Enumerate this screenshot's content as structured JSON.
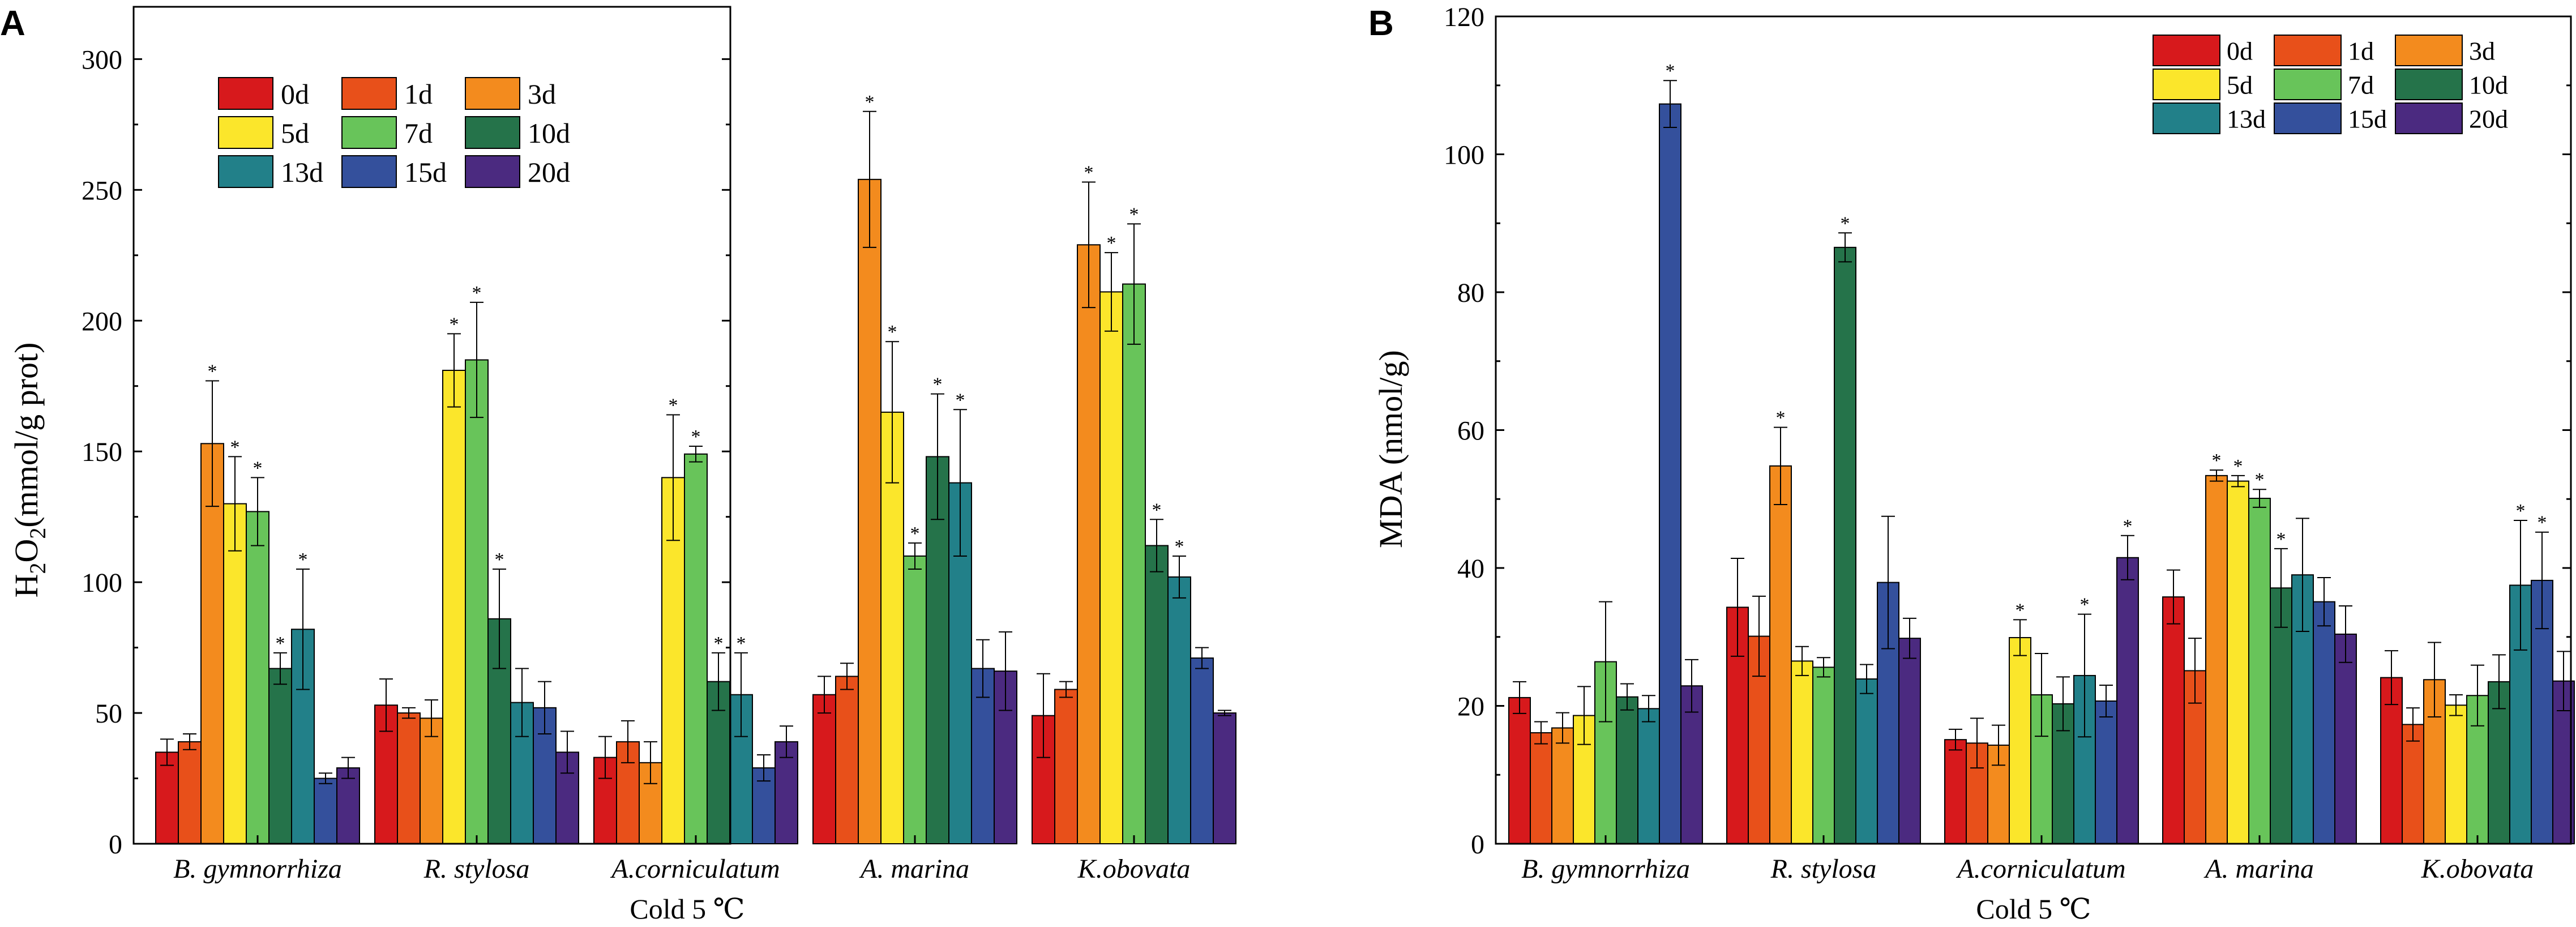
{
  "colors": {
    "0d": "#d7191c",
    "1d": "#e8501a",
    "3d": "#f38b1e",
    "5d": "#fbe62b",
    "7d": "#68c45a",
    "10d": "#25734a",
    "13d": "#228089",
    "15d": "#34509c",
    "20d": "#4b2a80"
  },
  "legend_labels": [
    "0d",
    "1d",
    "3d",
    "5d",
    "7d",
    "10d",
    "13d",
    "15d",
    "20d"
  ],
  "chart_data": [
    {
      "panel": "A",
      "type": "bar",
      "xlabel": "Cold  5 ℃",
      "ylabel": "H2O2(mmol/g prot)",
      "ylabel_parts": [
        "H",
        "2",
        "O",
        "2",
        "(mmol/g prot)"
      ],
      "ylim": [
        0,
        320
      ],
      "yticks": [
        0,
        50,
        100,
        150,
        200,
        250,
        300
      ],
      "legend_position": "top-left",
      "categories": [
        "B. gymnorrhiza",
        "R. stylosa",
        "A.corniculatum",
        "A. marina",
        "K.obovata"
      ],
      "series": [
        {
          "name": "0d",
          "values": [
            35,
            53,
            33,
            57,
            49
          ],
          "errors": [
            5,
            10,
            8,
            7,
            16
          ],
          "significant": [
            false,
            false,
            false,
            false,
            false
          ]
        },
        {
          "name": "1d",
          "values": [
            39,
            50,
            39,
            64,
            59
          ],
          "errors": [
            3,
            2,
            8,
            5,
            3
          ],
          "significant": [
            false,
            false,
            false,
            false,
            false
          ]
        },
        {
          "name": "3d",
          "values": [
            153,
            48,
            31,
            254,
            229
          ],
          "errors": [
            24,
            7,
            8,
            26,
            24
          ],
          "significant": [
            true,
            false,
            false,
            true,
            true
          ]
        },
        {
          "name": "5d",
          "values": [
            130,
            181,
            140,
            165,
            211
          ],
          "errors": [
            18,
            14,
            24,
            27,
            15
          ],
          "significant": [
            true,
            true,
            true,
            true,
            true
          ]
        },
        {
          "name": "7d",
          "values": [
            127,
            185,
            149,
            110,
            214
          ],
          "errors": [
            13,
            22,
            3,
            5,
            23
          ],
          "significant": [
            true,
            true,
            true,
            true,
            true
          ]
        },
        {
          "name": "10d",
          "values": [
            67,
            86,
            62,
            148,
            114
          ],
          "errors": [
            6,
            19,
            11,
            24,
            10
          ],
          "significant": [
            true,
            true,
            true,
            true,
            true
          ]
        },
        {
          "name": "13d",
          "values": [
            82,
            54,
            57,
            138,
            102
          ],
          "errors": [
            23,
            13,
            16,
            28,
            8
          ],
          "significant": [
            true,
            false,
            true,
            true,
            true
          ]
        },
        {
          "name": "15d",
          "values": [
            25,
            52,
            29,
            67,
            71
          ],
          "errors": [
            2,
            10,
            5,
            11,
            4
          ],
          "significant": [
            false,
            false,
            false,
            false,
            false
          ]
        },
        {
          "name": "20d",
          "values": [
            29,
            35,
            39,
            66,
            50
          ],
          "errors": [
            4,
            8,
            6,
            15,
            1
          ],
          "significant": [
            false,
            false,
            false,
            false,
            false
          ]
        }
      ]
    },
    {
      "panel": "B",
      "type": "bar",
      "xlabel": "Cold  5 ℃",
      "ylabel": "MDA (nmol/g)",
      "ylim": [
        0,
        120
      ],
      "yticks": [
        0,
        20,
        40,
        60,
        80,
        100,
        120
      ],
      "legend_position": "top-right",
      "categories": [
        "B. gymnorrhiza",
        "R. stylosa",
        "A.corniculatum",
        "A. marina",
        "K.obovata"
      ],
      "series": [
        {
          "name": "0d",
          "values": [
            21.2,
            34.3,
            15.1,
            35.8,
            24.1
          ],
          "errors": [
            2.3,
            7.1,
            1.5,
            3.9,
            3.9
          ],
          "significant": [
            false,
            false,
            false,
            false,
            false
          ]
        },
        {
          "name": "1d",
          "values": [
            16.1,
            30.1,
            14.6,
            25.1,
            17.3
          ],
          "errors": [
            1.6,
            5.8,
            3.6,
            4.7,
            2.4
          ],
          "significant": [
            false,
            false,
            false,
            false,
            false
          ]
        },
        {
          "name": "3d",
          "values": [
            16.8,
            54.8,
            14.3,
            53.4,
            23.8
          ],
          "errors": [
            2.2,
            5.6,
            2.9,
            0.8,
            5.4
          ],
          "significant": [
            false,
            true,
            false,
            true,
            false
          ]
        },
        {
          "name": "5d",
          "values": [
            18.6,
            26.5,
            29.9,
            52.6,
            20.1
          ],
          "errors": [
            4.2,
            2.1,
            2.6,
            0.8,
            1.5
          ],
          "significant": [
            false,
            false,
            true,
            true,
            false
          ]
        },
        {
          "name": "7d",
          "values": [
            26.4,
            25.6,
            21.6,
            50.1,
            21.5
          ],
          "errors": [
            8.7,
            1.4,
            6.0,
            1.3,
            4.4
          ],
          "significant": [
            false,
            false,
            false,
            true,
            false
          ]
        },
        {
          "name": "10d",
          "values": [
            21.3,
            86.5,
            20.3,
            37.1,
            23.5
          ],
          "errors": [
            1.9,
            2.1,
            3.9,
            5.7,
            3.9
          ],
          "significant": [
            false,
            true,
            false,
            true,
            false
          ]
        },
        {
          "name": "13d",
          "values": [
            19.6,
            23.9,
            24.4,
            39.0,
            37.5
          ],
          "errors": [
            1.9,
            2.1,
            8.9,
            8.2,
            9.4
          ],
          "significant": [
            false,
            false,
            true,
            false,
            true
          ]
        },
        {
          "name": "15d",
          "values": [
            107.3,
            37.9,
            20.7,
            35.1,
            38.2
          ],
          "errors": [
            3.4,
            9.6,
            2.3,
            3.5,
            7.0
          ],
          "significant": [
            true,
            false,
            false,
            false,
            true
          ]
        },
        {
          "name": "20d",
          "values": [
            22.9,
            29.8,
            41.5,
            30.4,
            23.6
          ],
          "errors": [
            3.8,
            2.9,
            3.2,
            4.1,
            4.3
          ],
          "significant": [
            false,
            false,
            true,
            false,
            false
          ]
        }
      ]
    }
  ]
}
